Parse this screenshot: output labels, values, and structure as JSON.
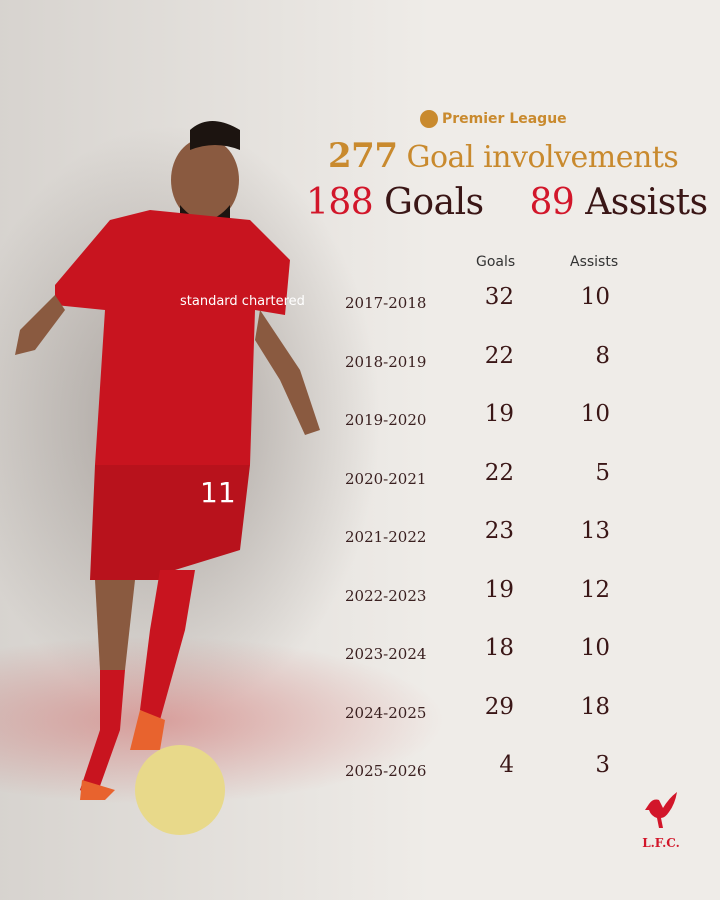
{
  "header": {
    "league": "Premier League",
    "involvements_value": "277",
    "involvements_label": "Goal involvements",
    "goals_value": "188",
    "goals_label": "Goals",
    "assists_value": "89",
    "assists_label": "Assists"
  },
  "table": {
    "columns": [
      "Goals",
      "Assists"
    ],
    "rows": [
      {
        "season": "2017-2018",
        "goals": "32",
        "assists": "10"
      },
      {
        "season": "2018-2019",
        "goals": "22",
        "assists": "8"
      },
      {
        "season": "2019-2020",
        "goals": "19",
        "assists": "10"
      },
      {
        "season": "2020-2021",
        "goals": "22",
        "assists": "5"
      },
      {
        "season": "2021-2022",
        "goals": "23",
        "assists": "13"
      },
      {
        "season": "2022-2023",
        "goals": "19",
        "assists": "12"
      },
      {
        "season": "2023-2024",
        "goals": "18",
        "assists": "10"
      },
      {
        "season": "2024-2025",
        "goals": "29",
        "assists": "18"
      },
      {
        "season": "2025-2026",
        "goals": "4",
        "assists": "3"
      }
    ]
  },
  "player": {
    "shirt_number": "11",
    "sponsor": "standard chartered"
  },
  "club_logo": {
    "text": "L.F.C.",
    "icon": "liverbird-icon"
  },
  "colors": {
    "accent_gold": "#c98a2e",
    "accent_red": "#d2162a",
    "text_dark": "#3a1616",
    "background": "#efece8"
  }
}
